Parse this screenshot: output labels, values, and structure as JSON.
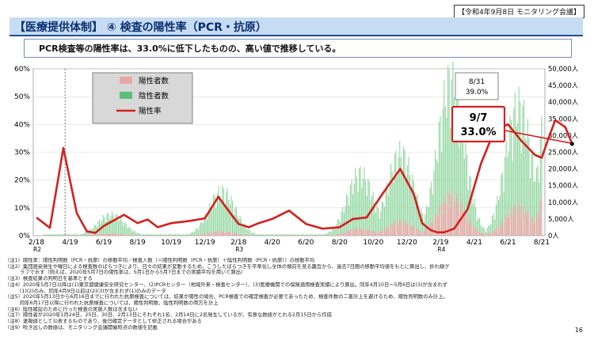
{
  "header": {
    "meeting_label": "【令和4年9月8日 モニタリング会議】",
    "title": "【医療提供体制】 ④ 検査の陽性率（PCR・抗原）",
    "subtitle": "PCR検査等の陽性率は、33.0%に低下したものの、高い値で推移している。"
  },
  "page_number": "16",
  "legend": [
    {
      "label": "陽性者数",
      "color": "#e8a6a6"
    },
    {
      "label": "陰性者数",
      "color": "#5cc07a"
    },
    {
      "label": "陽性率",
      "color": "#d42020"
    }
  ],
  "callouts": {
    "prev": {
      "date": "8/31",
      "value": "39.0%"
    },
    "current": {
      "date": "9/7",
      "value": "33.0%"
    }
  },
  "chart_data": {
    "type": "bar",
    "x_tick_labels": [
      "2/18",
      "4/19",
      "6/19",
      "8/19",
      "10/19",
      "12/19",
      "2/18",
      "4/20",
      "6/20",
      "8/20",
      "10/20",
      "12/20",
      "2/19",
      "4/21",
      "6/21",
      "8/21"
    ],
    "x_year_labels": [
      {
        "at": "2/18",
        "text": "R2"
      },
      {
        "at": "2/18",
        "index": 6,
        "text": "R3"
      },
      {
        "at": "2/19",
        "text": "R4"
      }
    ],
    "y_left_ticks": [
      "0%",
      "10%",
      "20%",
      "30%",
      "40%",
      "50%",
      "60%"
    ],
    "y_right_ticks": [
      "0人",
      "5,000人",
      "10,000人",
      "15,000人",
      "20,000人",
      "25,000人",
      "30,000人",
      "35,000人",
      "40,000人",
      "45,000人",
      "50,000人"
    ],
    "y_left_range": [
      0,
      60
    ],
    "y_right_range": [
      0,
      50000
    ],
    "positivity_rate_series": {
      "name": "陽性率",
      "x_index": [
        0,
        0.4,
        0.8,
        1.2,
        1.5,
        1.75,
        2.0,
        2.3,
        2.6,
        3.0,
        3.3,
        3.6,
        4.0,
        4.5,
        5.0,
        5.4,
        5.7,
        6.0,
        6.3,
        6.6,
        7.0,
        7.5,
        8.0,
        8.5,
        9.0,
        9.4,
        9.8,
        10.3,
        10.8,
        11.2,
        11.45,
        11.7,
        11.9,
        12.1,
        12.4,
        12.8,
        13.2,
        13.6,
        14.0,
        14.4,
        14.8,
        15.0,
        15.2,
        15.4,
        15.7,
        15.9
      ],
      "values": [
        6.5,
        2.8,
        31.5,
        8.0,
        1.5,
        1.0,
        3.5,
        5.5,
        7.5,
        4.5,
        5.8,
        3.0,
        4.5,
        5.2,
        6.2,
        14.0,
        9.0,
        4.2,
        3.0,
        4.5,
        6.0,
        9.0,
        4.2,
        2.5,
        3.0,
        6.0,
        6.5,
        15.5,
        24.0,
        15.0,
        4.5,
        2.0,
        1.2,
        1.2,
        2.5,
        9.5,
        26.0,
        38.0,
        40.0,
        34.0,
        29.0,
        28.0,
        35.0,
        41.5,
        39.0,
        33.0
      ]
    },
    "test_count_peaks": [
      {
        "x_index": 2.2,
        "positives": 800,
        "negatives": 6500
      },
      {
        "x_index": 5.5,
        "positives": 1500,
        "negatives": 14000
      },
      {
        "x_index": 9.6,
        "positives": 2500,
        "negatives": 19000
      },
      {
        "x_index": 10.8,
        "positives": 5000,
        "negatives": 23500
      },
      {
        "x_index": 12.3,
        "positives": 14000,
        "negatives": 40000
      },
      {
        "x_index": 14.3,
        "positives": 10000,
        "negatives": 35000
      },
      {
        "x_index": 15.5,
        "positives": 30000,
        "negatives": 57000
      }
    ]
  },
  "notes": [
    "（注1）陽性率：陽性判明数（PCR・抗原）の移動平均／検査人数（＝陽性判明数（PCR・抗原）＋陰性判明数（PCR・抗原））の移動平均",
    "（注2）集団感染発生や曜日による検査数のばらつきにより、日々の結果が変動するため、こうしたばらつきを平準化し全体の傾向を見る趣旨から、過去7日間の移動平均値をもとに算出し、折れ線グ",
    "　　　ラフで示す（例えば、2020年5月7日の陽性率は、5月1日から5月7日までの実績平均を用いて算出）",
    "（注3）検査結果の判明日を基準とする",
    "（注4）2020年5月7日以降は(1)東京都健康安全研究センター、(2)PCRセンター（地域外来・検査センター）、(3)医療機関での保険適用検査実績により算出。同年4月10日～5月6日は(3)が含まれず",
    "　　　(1)(2)のみ、同年4月9日以前は(2)(3)が含まれず(1)のみのデータ",
    "（注5）2020年5月13日から6月16日までに行われた抗原検査については、結果が陽性の場合、PCR検査での確定検査が必要であったため、検査件数の二重計上を避けるため、陽性判明数のみ計上。",
    "　　　同年6月17日以降に行われた抗原検査については、陽性判明数、陰性判明数の両方を計上",
    "（注6）陰性確認のために行った検査の実施人数は含まない",
    "（注7）陽性者が2020年1月24日、25日、30日、2月13日にそれぞれ1名、2月14日に2名発生しているが、有意な数値がとれる2月15日から作成",
    "（注8）速報値として公表するものであり、後日確定データとして修正される場合がある",
    "（注9）吹き出しの数値は、モニタリング会議開催時点の数値を記載"
  ]
}
